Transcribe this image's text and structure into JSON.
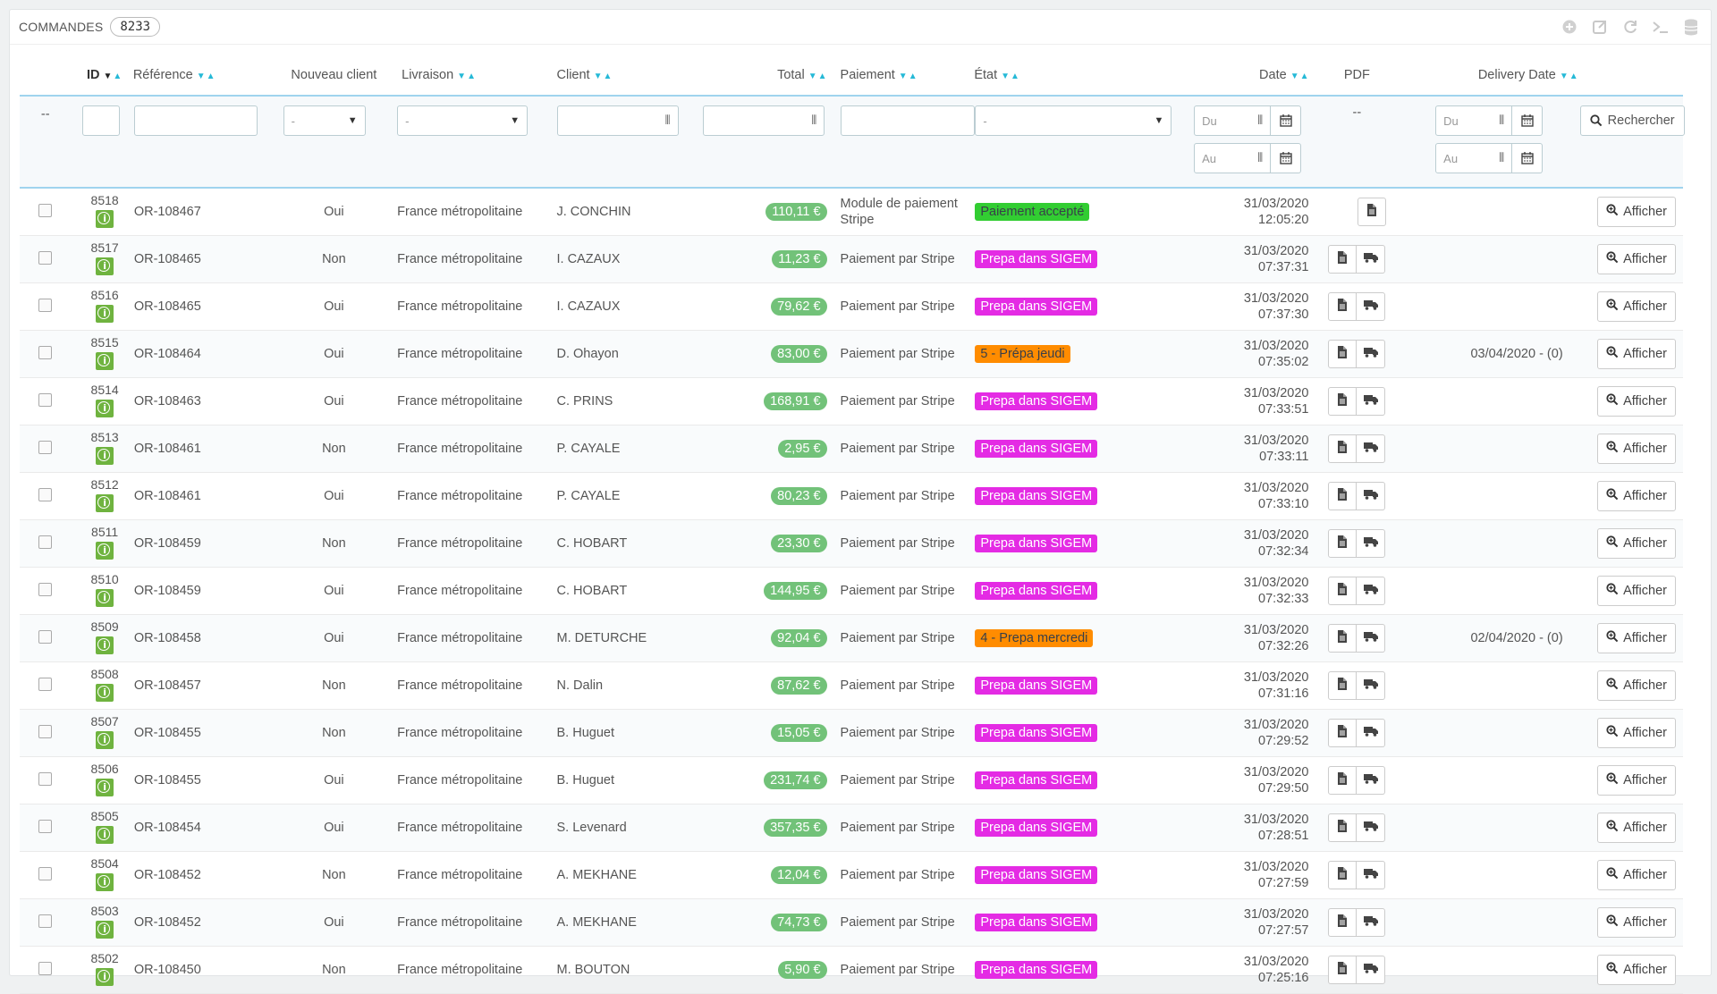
{
  "header": {
    "title": "COMMANDES",
    "count": "8233"
  },
  "toolbar": {
    "icons": [
      "plus-circle-icon",
      "export-icon",
      "refresh-icon",
      "terminal-icon",
      "database-icon"
    ]
  },
  "columns": {
    "id": "ID",
    "reference": "Référence",
    "new_client": "Nouveau client",
    "delivery": "Livraison",
    "client": "Client",
    "total": "Total",
    "payment": "Paiement",
    "state": "État",
    "date": "Date",
    "pdf": "PDF",
    "delivery_date": "Delivery Date"
  },
  "filters": {
    "dash": "--",
    "select_default": "-",
    "from": "Du",
    "to": "Au",
    "search_label": "Rechercher"
  },
  "view_label": "Afficher",
  "status_colors": {
    "Paiement accepté": "#32cd32",
    "Prepa dans SIGEM": "#e42be4",
    "5 - Prépa jeudi": "#ff8c00",
    "4 - Prepa mercredi": "#ff8c00"
  },
  "amount_color": "#72c279",
  "orders": [
    {
      "id": "8518",
      "ref": "OR-108467",
      "new": "Oui",
      "delivery": "France métropolitaine",
      "client": "J. CONCHIN",
      "total": "110,11 €",
      "payment": [
        "Module de paiement",
        "Stripe"
      ],
      "state": "Paiement accepté",
      "state_text_color": "#383f49",
      "date": "31/03/2020",
      "time": "12:05:20",
      "pdf": "invoice",
      "delivery_date": ""
    },
    {
      "id": "8517",
      "ref": "OR-108465",
      "new": "Non",
      "delivery": "France métropolitaine",
      "client": "I. CAZAUX",
      "total": "11,23 €",
      "payment": [
        "Paiement par Stripe"
      ],
      "state": "Prepa dans SIGEM",
      "date": "31/03/2020",
      "time": "07:37:31",
      "pdf": "both",
      "delivery_date": ""
    },
    {
      "id": "8516",
      "ref": "OR-108465",
      "new": "Oui",
      "delivery": "France métropolitaine",
      "client": "I. CAZAUX",
      "total": "79,62 €",
      "payment": [
        "Paiement par Stripe"
      ],
      "state": "Prepa dans SIGEM",
      "date": "31/03/2020",
      "time": "07:37:30",
      "pdf": "both",
      "delivery_date": ""
    },
    {
      "id": "8515",
      "ref": "OR-108464",
      "new": "Oui",
      "delivery": "France métropolitaine",
      "client": "D. Ohayon",
      "total": "83,00 €",
      "payment": [
        "Paiement par Stripe"
      ],
      "state": "5 - Prépa jeudi",
      "state_text_color": "#383f49",
      "date": "31/03/2020",
      "time": "07:35:02",
      "pdf": "both",
      "delivery_date": "03/04/2020 - (0)"
    },
    {
      "id": "8514",
      "ref": "OR-108463",
      "new": "Oui",
      "delivery": "France métropolitaine",
      "client": "C. PRINS",
      "total": "168,91 €",
      "payment": [
        "Paiement par Stripe"
      ],
      "state": "Prepa dans SIGEM",
      "date": "31/03/2020",
      "time": "07:33:51",
      "pdf": "both",
      "delivery_date": ""
    },
    {
      "id": "8513",
      "ref": "OR-108461",
      "new": "Non",
      "delivery": "France métropolitaine",
      "client": "P. CAYALE",
      "total": "2,95 €",
      "payment": [
        "Paiement par Stripe"
      ],
      "state": "Prepa dans SIGEM",
      "date": "31/03/2020",
      "time": "07:33:11",
      "pdf": "both",
      "delivery_date": ""
    },
    {
      "id": "8512",
      "ref": "OR-108461",
      "new": "Oui",
      "delivery": "France métropolitaine",
      "client": "P. CAYALE",
      "total": "80,23 €",
      "payment": [
        "Paiement par Stripe"
      ],
      "state": "Prepa dans SIGEM",
      "date": "31/03/2020",
      "time": "07:33:10",
      "pdf": "both",
      "delivery_date": ""
    },
    {
      "id": "8511",
      "ref": "OR-108459",
      "new": "Non",
      "delivery": "France métropolitaine",
      "client": "C. HOBART",
      "total": "23,30 €",
      "payment": [
        "Paiement par Stripe"
      ],
      "state": "Prepa dans SIGEM",
      "date": "31/03/2020",
      "time": "07:32:34",
      "pdf": "both",
      "delivery_date": ""
    },
    {
      "id": "8510",
      "ref": "OR-108459",
      "new": "Oui",
      "delivery": "France métropolitaine",
      "client": "C. HOBART",
      "total": "144,95 €",
      "payment": [
        "Paiement par Stripe"
      ],
      "state": "Prepa dans SIGEM",
      "date": "31/03/2020",
      "time": "07:32:33",
      "pdf": "both",
      "delivery_date": ""
    },
    {
      "id": "8509",
      "ref": "OR-108458",
      "new": "Oui",
      "delivery": "France métropolitaine",
      "client": "M. DETURCHE",
      "total": "92,04 €",
      "payment": [
        "Paiement par Stripe"
      ],
      "state": "4 - Prepa mercredi",
      "state_text_color": "#383f49",
      "date": "31/03/2020",
      "time": "07:32:26",
      "pdf": "both",
      "delivery_date": "02/04/2020 - (0)"
    },
    {
      "id": "8508",
      "ref": "OR-108457",
      "new": "Non",
      "delivery": "France métropolitaine",
      "client": "N. Dalin",
      "total": "87,62 €",
      "payment": [
        "Paiement par Stripe"
      ],
      "state": "Prepa dans SIGEM",
      "date": "31/03/2020",
      "time": "07:31:16",
      "pdf": "both",
      "delivery_date": ""
    },
    {
      "id": "8507",
      "ref": "OR-108455",
      "new": "Non",
      "delivery": "France métropolitaine",
      "client": "B. Huguet",
      "total": "15,05 €",
      "payment": [
        "Paiement par Stripe"
      ],
      "state": "Prepa dans SIGEM",
      "date": "31/03/2020",
      "time": "07:29:52",
      "pdf": "both",
      "delivery_date": ""
    },
    {
      "id": "8506",
      "ref": "OR-108455",
      "new": "Oui",
      "delivery": "France métropolitaine",
      "client": "B. Huguet",
      "total": "231,74 €",
      "payment": [
        "Paiement par Stripe"
      ],
      "state": "Prepa dans SIGEM",
      "date": "31/03/2020",
      "time": "07:29:50",
      "pdf": "both",
      "delivery_date": ""
    },
    {
      "id": "8505",
      "ref": "OR-108454",
      "new": "Oui",
      "delivery": "France métropolitaine",
      "client": "S. Levenard",
      "total": "357,35 €",
      "payment": [
        "Paiement par Stripe"
      ],
      "state": "Prepa dans SIGEM",
      "date": "31/03/2020",
      "time": "07:28:51",
      "pdf": "both",
      "delivery_date": ""
    },
    {
      "id": "8504",
      "ref": "OR-108452",
      "new": "Non",
      "delivery": "France métropolitaine",
      "client": "A. MEKHANE",
      "total": "12,04 €",
      "payment": [
        "Paiement par Stripe"
      ],
      "state": "Prepa dans SIGEM",
      "date": "31/03/2020",
      "time": "07:27:59",
      "pdf": "both",
      "delivery_date": ""
    },
    {
      "id": "8503",
      "ref": "OR-108452",
      "new": "Oui",
      "delivery": "France métropolitaine",
      "client": "A. MEKHANE",
      "total": "74,73 €",
      "payment": [
        "Paiement par Stripe"
      ],
      "state": "Prepa dans SIGEM",
      "date": "31/03/2020",
      "time": "07:27:57",
      "pdf": "both",
      "delivery_date": ""
    },
    {
      "id": "8502",
      "ref": "OR-108450",
      "new": "Non",
      "delivery": "France métropolitaine",
      "client": "M. BOUTON",
      "total": "5,90 €",
      "payment": [
        "Paiement par Stripe"
      ],
      "state": "Prepa dans SIGEM",
      "date": "31/03/2020",
      "time": "07:25:16",
      "pdf": "both",
      "delivery_date": ""
    }
  ]
}
